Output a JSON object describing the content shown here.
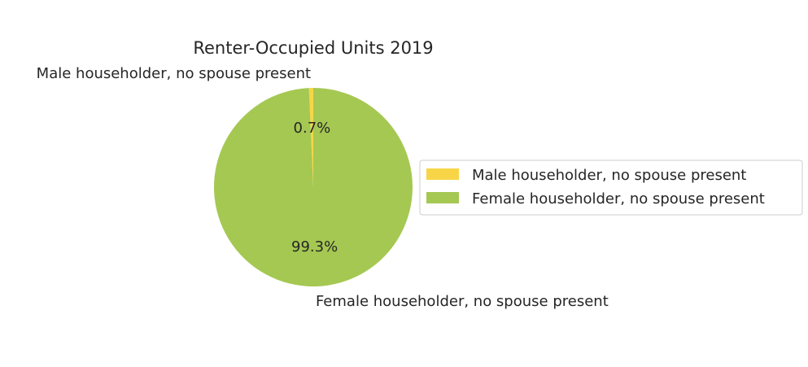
{
  "chart_data": {
    "type": "pie",
    "title": "Renter-Occupied Units 2019",
    "labels": [
      "Male householder, no spouse present",
      "Female householder, no spouse present"
    ],
    "values": [
      0.7,
      99.3
    ],
    "value_labels": [
      "0.7%",
      "99.3%"
    ],
    "colors": [
      "#f7d547",
      "#a5c852"
    ],
    "start_angle_deg": 90,
    "direction": "counterclockwise",
    "legend": {
      "placement": "center-right",
      "entries": [
        "Male householder, no spouse present",
        "Female householder, no spouse present"
      ]
    }
  }
}
